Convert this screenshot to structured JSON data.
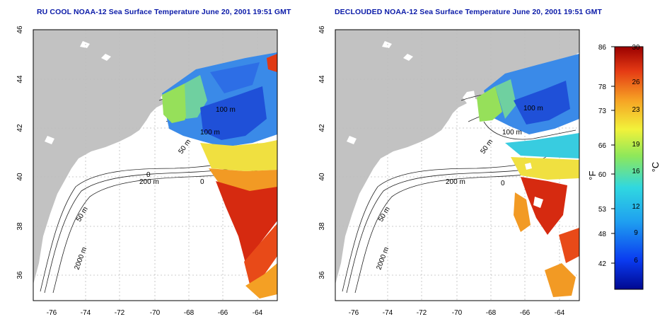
{
  "titles": {
    "left": "RU COOL NOAA-12 Sea Surface Temperature June 20, 2001 19:51 GMT",
    "right": "DECLOUDED NOAA-12 Sea Surface Temperature June 20, 2001 19:51 GMT"
  },
  "axes": {
    "lat_ticks": [
      "46",
      "44",
      "42",
      "40",
      "38",
      "36"
    ],
    "lon_ticks": [
      "-76",
      "-74",
      "-72",
      "-70",
      "-68",
      "-66",
      "-64"
    ]
  },
  "contour_labels": {
    "left": [
      "100 m",
      "100 m",
      "50 m",
      "200 m",
      "50 m",
      "2000 m",
      "0",
      "0"
    ],
    "right": [
      "100 m",
      "100 m",
      "50 m",
      "200 m",
      "50 m",
      "2000 m",
      "0"
    ]
  },
  "colorbar": {
    "fahrenheit_ticks": [
      "86",
      "78",
      "73",
      "66",
      "60",
      "53",
      "48",
      "42"
    ],
    "celsius_ticks": [
      "30",
      "26",
      "23",
      "19",
      "16",
      "12",
      "9",
      "6"
    ],
    "fahrenheit_unit": "°F",
    "celsius_unit": "°C"
  },
  "colors": {
    "title": "#0a1aa8",
    "land": "#c2c2c2",
    "water_bg": "#ffffff",
    "warm": "#d42a10",
    "cool": "#1f50d8"
  }
}
